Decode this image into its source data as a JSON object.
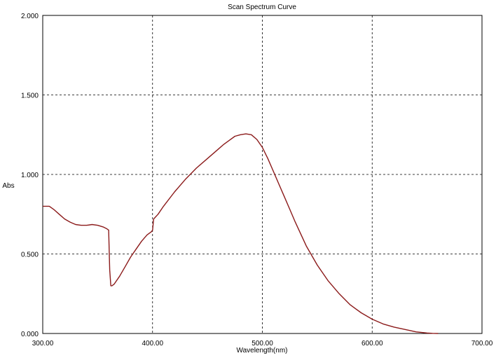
{
  "chart_data": {
    "type": "line",
    "title": "Scan Spectrum Curve",
    "xlabel": "Wavelength(nm)",
    "ylabel": "Abs",
    "xlim": [
      300,
      700
    ],
    "ylim": [
      0,
      2
    ],
    "xticks": [
      300,
      400,
      500,
      600,
      700
    ],
    "xtick_labels": [
      "300.00",
      "400.00",
      "500.00",
      "600.00",
      "700.00"
    ],
    "yticks": [
      0,
      0.5,
      1,
      1.5,
      2
    ],
    "ytick_labels": [
      "0.000",
      "0.500",
      "1.000",
      "1.500",
      "2.000"
    ],
    "grid": true,
    "legend": "none",
    "series": [
      {
        "color": "#8b1a1a",
        "x": [
          300,
          306,
          310,
          315,
          320,
          325,
          330,
          335,
          340,
          345,
          350,
          355,
          358,
          360,
          361,
          362,
          363,
          365,
          370,
          375,
          380,
          385,
          390,
          395,
          399,
          400,
          401,
          405,
          410,
          420,
          430,
          440,
          450,
          460,
          465,
          470,
          475,
          480,
          485,
          490,
          495,
          500,
          505,
          510,
          515,
          520,
          525,
          530,
          540,
          550,
          560,
          570,
          580,
          590,
          600,
          610,
          620,
          630,
          640,
          650,
          655,
          660
        ],
        "y": [
          0.8,
          0.8,
          0.78,
          0.75,
          0.72,
          0.7,
          0.685,
          0.68,
          0.68,
          0.685,
          0.68,
          0.67,
          0.66,
          0.65,
          0.4,
          0.3,
          0.3,
          0.31,
          0.36,
          0.42,
          0.48,
          0.53,
          0.58,
          0.62,
          0.64,
          0.65,
          0.72,
          0.75,
          0.8,
          0.89,
          0.97,
          1.04,
          1.1,
          1.16,
          1.19,
          1.215,
          1.24,
          1.25,
          1.255,
          1.25,
          1.22,
          1.17,
          1.1,
          1.02,
          0.94,
          0.86,
          0.78,
          0.7,
          0.55,
          0.43,
          0.33,
          0.25,
          0.18,
          0.13,
          0.09,
          0.06,
          0.04,
          0.025,
          0.01,
          0.003,
          0.001,
          0.0
        ]
      }
    ]
  }
}
